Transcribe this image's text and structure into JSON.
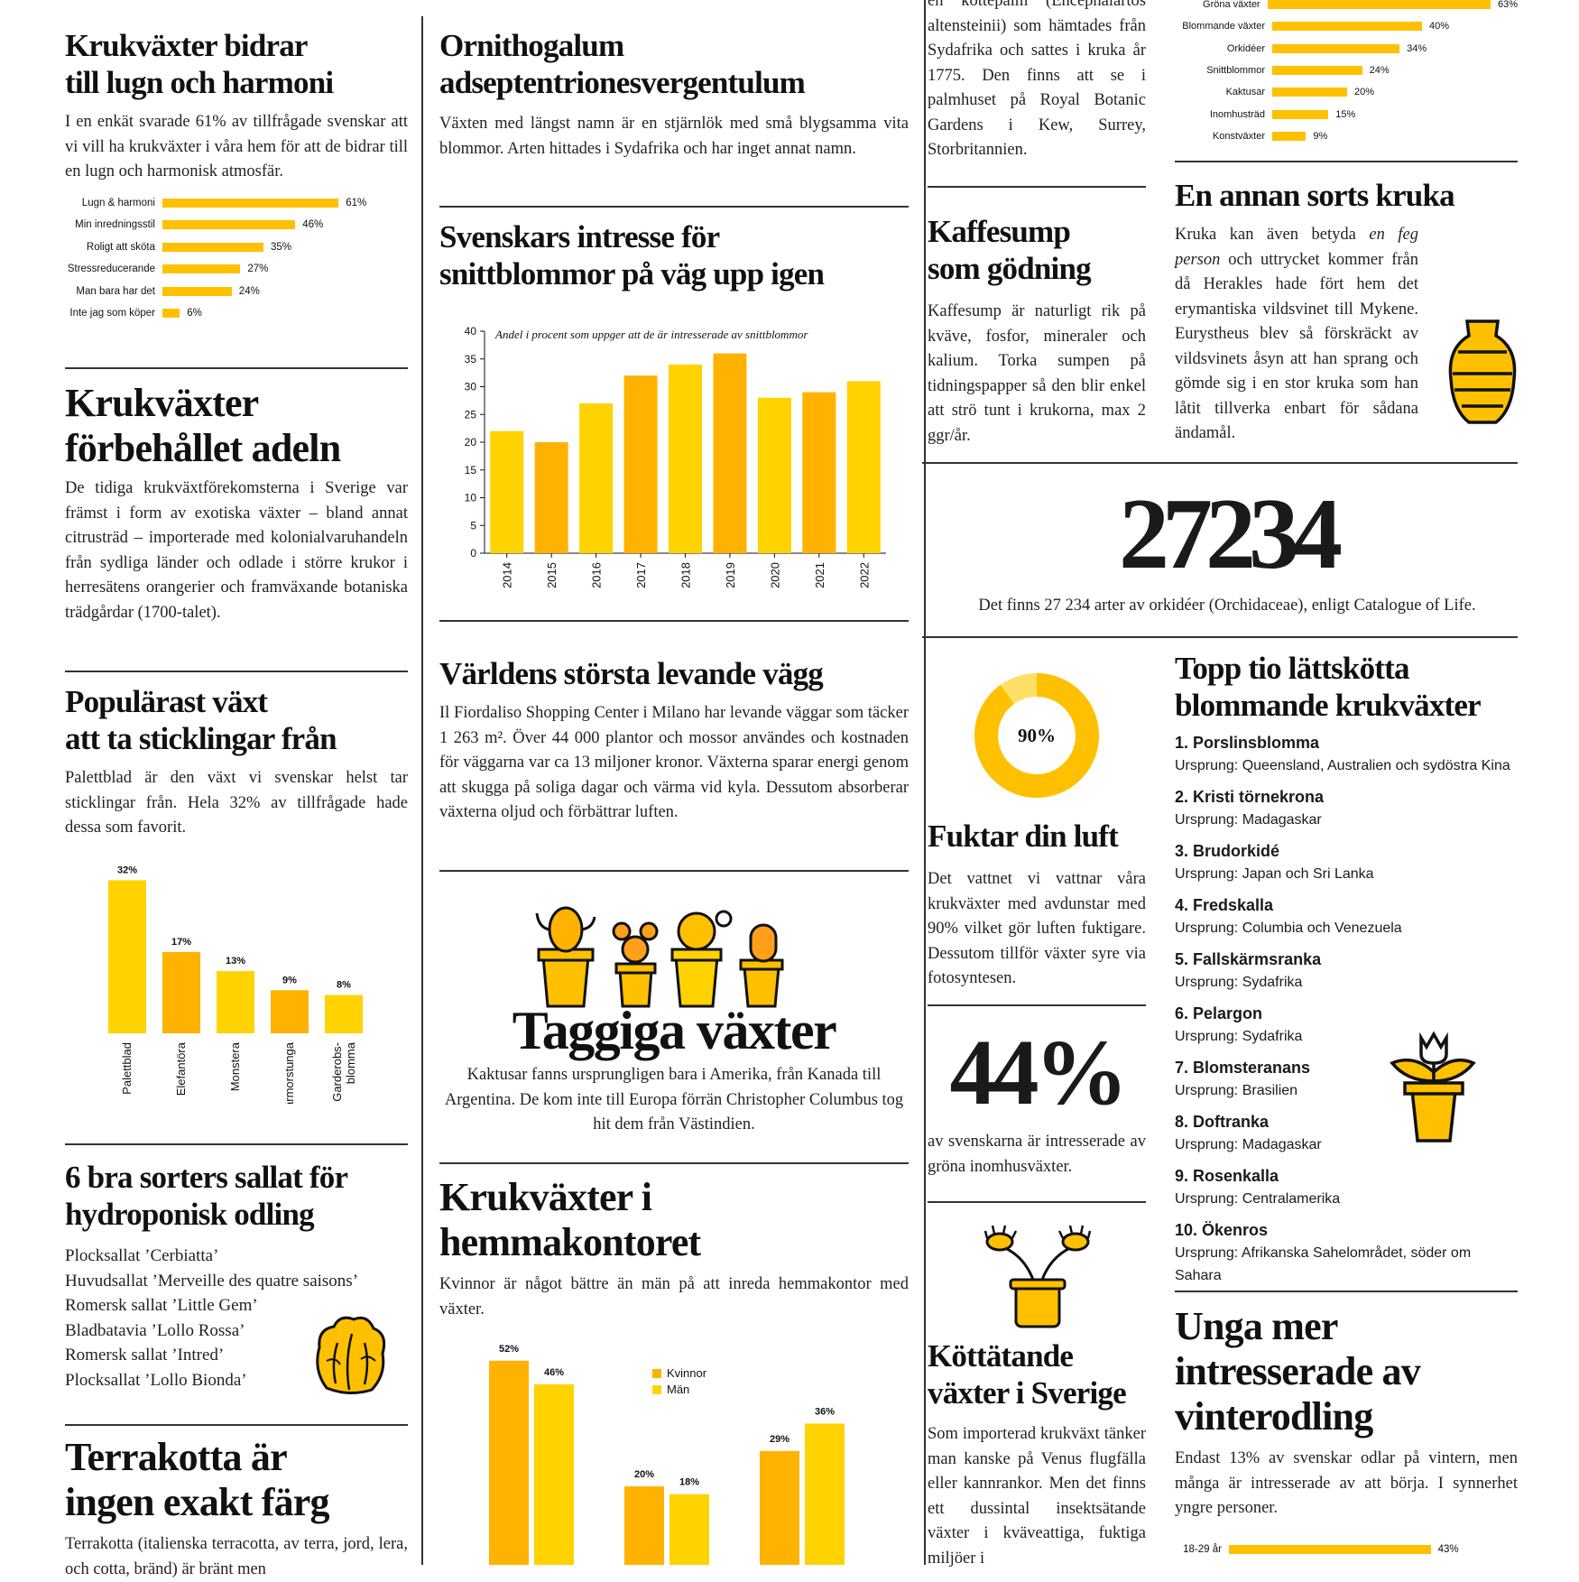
{
  "colors": {
    "yellow": "#ffc000",
    "yellow_dark": "#ffb300",
    "yellow_light": "#ffd200",
    "text": "#1a1a1a"
  },
  "col1": {
    "s1": {
      "title_l1": "Krukväxter bidrar",
      "title_l2": "till lugn och harmoni",
      "body": "I en enkät svarade 61% av tillfrågade svenskar att vi vill ha krukväxter i våra hem för att de bidrar till en lugn och harmonisk atmosfär."
    },
    "s2": {
      "title_l1": "Krukväxter",
      "title_l2": "förbehållet adeln",
      "body": "De tidiga krukväxtförekomsterna i Sverige var främst i form av exotiska växter – bland annat citrusträd – importerade med kolonialvaruhandeln från sydliga länder och odlade i större krukor i herresätens orangerier och framväxande botaniska trädgårdar (1700-talet)."
    },
    "s3": {
      "title_l1": "Populärast växt",
      "title_l2": "att ta sticklingar från",
      "body": "Palettblad är den växt vi svenskar helst tar sticklingar från. Hela 32% av tillfrågade hade dessa som favorit."
    },
    "s4": {
      "title_l1": "6 bra sorters sallat för",
      "title_l2": "hydroponisk odling",
      "items": [
        "Plocksallat ’Cerbiatta’",
        "Huvudsallat ’Merveille des quatre saisons’",
        "Romersk sallat ’Little Gem’",
        "Bladbatavia ’Lollo Rossa’",
        "Romersk sallat ’Intred’",
        "Plocksallat ’Lollo Bionda’"
      ],
      "icon": "lettuce-icon"
    },
    "s5": {
      "title_l1": "Terrakotta är",
      "title_l2": "ingen exakt färg",
      "body": "Terrakotta (italienska terracotta, av terra, jord, lera, och cotta, bränd) är bränt men"
    }
  },
  "col2": {
    "s1": {
      "title_l1": "Ornithogalum",
      "title_l2": "adseptentrionesvergentulum",
      "body": "Växten med längst namn är en stjärnlök med små blygsamma vita blommor. Arten hittades i Sydafrika och har inget annat namn."
    },
    "s2": {
      "title_l1": "Svenskars intresse för",
      "title_l2": "snittblommor på väg upp igen"
    },
    "s3": {
      "title": "Världens största levande vägg",
      "body": "Il Fiordaliso Shopping Center i Milano har levande väggar  som täcker 1 263 m². Över 44 000 plantor och mossor användes och kostnaden för väggarna var ca 13 miljoner kronor. Växterna sparar energi genom att skugga på soliga dagar och värma vid kyla. Dessutom absorberar växterna oljud och förbättrar luften."
    },
    "s4": {
      "title": "Taggiga växter",
      "body": "Kaktusar fanns ursprungligen bara i Amerika, från Kanada till Argentina. De kom inte till Europa förrän Christopher Columbus tog hit dem från Västindien.",
      "icon": "cactus-pots-icon"
    },
    "s5": {
      "title_l1": "Krukväxter i",
      "title_l2": "hemmakontoret",
      "body": "Kvinnor är något bättre än män på att inreda hemmakontor med växter."
    }
  },
  "col3": {
    "s1": {
      "body": "en kottepalm (Encephalartos altensteinii) som hämtades från Sydafrika och sattes i kruka år 1775. Den finns att se i palmhuset på Royal Botanic Gardens i Kew, Surrey, Storbritannien."
    },
    "s2": {
      "title_l1": "Kaffesump",
      "title_l2": "som gödning",
      "body": "Kaffesump är naturligt rik på kväve, fosfor, mineraler och kalium. Torka sumpen på tidningspapper så den blir enkel att strö tunt i krukorna, max 2 ggr/år."
    },
    "s3": {
      "title": "Fuktar din luft",
      "donut_value": "90%",
      "donut_fraction": 0.9,
      "body": "Det vattnet vi vattnar våra krukväxter med avdunstar med 90% vilket gör luften fuktigare. Dessutom tillför växter syre via fotosyntesen."
    },
    "s4": {
      "big": "44%",
      "body": "av svenskarna är intresserade av gröna inomhusväxter."
    },
    "s5": {
      "title_l1": "Köttätande",
      "title_l2": "växter i Sverige",
      "body": "Som importerad krukväxt tänker man kanske på Venus flugfälla eller kannrankor. Men det finns ett dussintal insektsätande växter i kväveattiga, fuktiga miljöer i",
      "icon": "carnivorous-plant-icon"
    }
  },
  "col4": {
    "s1": {
      "title": "En annan sorts kruka",
      "body": "Kruka kan även betyda en feg person och uttrycket kommer från då Herakles hade fört hem det erymantiska vildsvinet till Mykene. Eurystheus blev så förskräckt av vildsvinets åsyn att han sprang och gömde sig i en stor kruka som han låtit tillverka enbart för sådana ändamål.",
      "icon": "vase-icon"
    },
    "s2": {
      "title": "Topp tio lättskötta",
      "title_l2": "blommande krukväxter",
      "items": [
        {
          "name": "1. Porslinsblomma",
          "origin": "Ursprung: Queensland, Australien och sydöstra Kina"
        },
        {
          "name": "2. Kristi törnekrona",
          "origin": "Ursprung: Madagaskar"
        },
        {
          "name": "3. Brudorkidé",
          "origin": "Ursprung: Japan och Sri Lanka"
        },
        {
          "name": "4. Fredskalla",
          "origin": "Ursprung: Columbia och Venezuela"
        },
        {
          "name": "5. Fallskärmsranka",
          "origin": "Ursprung: Sydafrika"
        },
        {
          "name": "6. Pelargon",
          "origin": "Ursprung: Sydafrika"
        },
        {
          "name": "7. Blomsteranans",
          "origin": "Ursprung: Brasilien"
        },
        {
          "name": "8. Doftranka",
          "origin": "Ursprung: Madagaskar"
        },
        {
          "name": "9. Rosenkalla",
          "origin": "Ursprung: Centralamerika"
        },
        {
          "name": "10. Ökenros",
          "origin": "Ursprung: Afrikanska Sahelområdet, söder om Sahara"
        }
      ],
      "icon": "tulip-pot-icon"
    },
    "s3": {
      "title_l1": "Unga mer",
      "title_l2": "intresserade av",
      "title_l3": "vinterodling",
      "body": "Endast 13% av svenskar odlar på vintern, men många är intresserade av att börja. I synnerhet yngre personer."
    }
  },
  "mid": {
    "big": "27234",
    "body": "Det finns 27 234 arter av orkidéer (Orchidaceae), enligt Catalogue of Life."
  },
  "chart_data": [
    {
      "id": "harmony",
      "type": "bar",
      "orientation": "horizontal",
      "categories": [
        "Lugn & harmoni",
        "Min inredningsstil",
        "Roligt att sköta",
        "Stressreducerande",
        "Man bara har det",
        "Inte jag som köper"
      ],
      "values": [
        61,
        46,
        35,
        27,
        24,
        6
      ],
      "labels": [
        "61%",
        "46%",
        "35%",
        "27%",
        "24%",
        "6%"
      ]
    },
    {
      "id": "cutflowers",
      "type": "bar",
      "orientation": "vertical",
      "title": "Andel i procent som uppger att de är intresserade av snittblommor",
      "categories": [
        "2014",
        "2015",
        "2016",
        "2017",
        "2018",
        "2019",
        "2020",
        "2021",
        "2022"
      ],
      "values": [
        22,
        20,
        27,
        32,
        34,
        36,
        28,
        29,
        31
      ],
      "ylim": [
        0,
        40
      ],
      "yticks": [
        "0",
        "5",
        "10",
        "15",
        "20",
        "25",
        "30",
        "35",
        "40"
      ]
    },
    {
      "id": "cuttings",
      "type": "bar",
      "orientation": "vertical",
      "categories": [
        "Palettblad",
        "Elefantöra",
        "Monstera",
        "Svärmorstunga",
        "Garderobs-blomma"
      ],
      "values": [
        32,
        17,
        13,
        9,
        8
      ],
      "labels": [
        "32%",
        "17%",
        "13%",
        "9%",
        "8%"
      ]
    },
    {
      "id": "homeoffice",
      "type": "bar",
      "orientation": "vertical",
      "series": [
        {
          "name": "Kvinnor",
          "values": [
            52,
            20,
            29
          ],
          "labels": [
            "52%",
            "20%",
            "29%"
          ]
        },
        {
          "name": "Män",
          "values": [
            46,
            18,
            36
          ],
          "labels": [
            "46%",
            "18%",
            "36%"
          ]
        }
      ]
    },
    {
      "id": "plants_types",
      "type": "bar",
      "orientation": "horizontal",
      "categories": [
        "Gröna växter",
        "Blommande växter",
        "Orkidéer",
        "Snittblommor",
        "Kaktusar",
        "Inomhusträd",
        "Konstväxter"
      ],
      "values": [
        63,
        40,
        34,
        24,
        20,
        15,
        9
      ],
      "labels": [
        "63%",
        "40%",
        "34%",
        "24%",
        "20%",
        "15%",
        "9%"
      ]
    },
    {
      "id": "winter",
      "type": "bar",
      "orientation": "horizontal",
      "categories": [
        "18-29 år"
      ],
      "values": [
        43
      ],
      "labels": [
        "43%"
      ]
    }
  ]
}
